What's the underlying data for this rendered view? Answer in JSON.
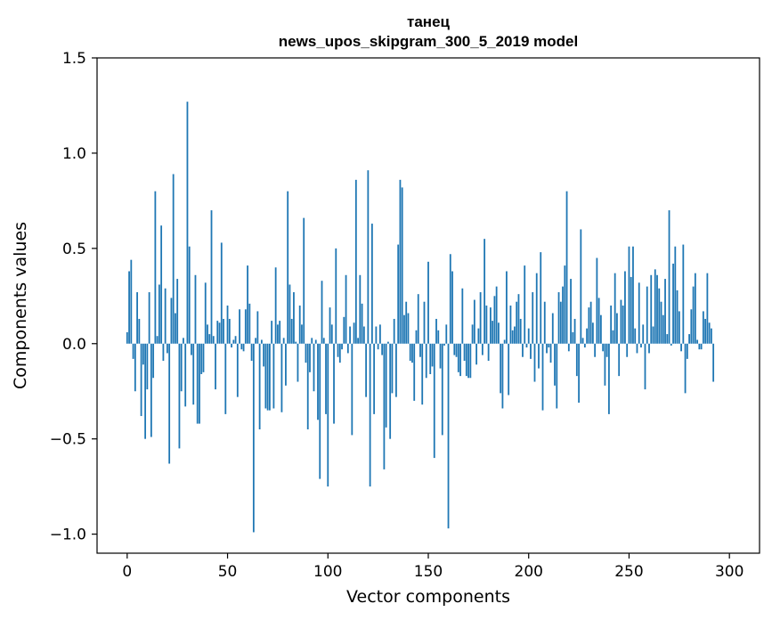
{
  "chart_data": {
    "type": "bar",
    "title": "танец",
    "subtitle": "news_upos_skipgram_300_5_2019 model",
    "xlabel": "Vector components",
    "ylabel": "Components values",
    "xlim": [
      -15,
      315
    ],
    "ylim": [
      -1.1,
      1.5
    ],
    "xticks": [
      0,
      50,
      100,
      150,
      200,
      250,
      300
    ],
    "yticks": [
      1.5,
      1.0,
      0.5,
      0.0,
      -0.5,
      -1.0
    ],
    "ytick_labels": [
      "1.5",
      "1.0",
      "0.5",
      "0.0",
      "−0.5",
      "−1.0"
    ],
    "bar_color": "#1f77b4",
    "grid": false,
    "x_start": 0,
    "values": [
      0.06,
      0.38,
      0.44,
      -0.08,
      -0.25,
      0.27,
      0.13,
      -0.38,
      -0.11,
      -0.5,
      -0.24,
      0.27,
      -0.49,
      -0.18,
      0.8,
      0.04,
      0.31,
      0.62,
      -0.09,
      0.29,
      -0.05,
      -0.63,
      0.24,
      0.89,
      0.16,
      0.34,
      -0.55,
      -0.25,
      0.03,
      -0.33,
      1.27,
      0.51,
      -0.06,
      -0.32,
      0.36,
      -0.42,
      -0.42,
      -0.16,
      -0.15,
      0.32,
      0.1,
      0.05,
      0.7,
      0.04,
      -0.24,
      0.12,
      0.11,
      0.53,
      0.13,
      -0.37,
      0.2,
      0.13,
      -0.02,
      0.02,
      0.04,
      -0.28,
      0.18,
      -0.03,
      -0.04,
      0.18,
      0.41,
      0.21,
      -0.09,
      -0.99,
      0.03,
      0.17,
      -0.45,
      0.02,
      -0.12,
      -0.34,
      -0.35,
      -0.35,
      0.12,
      -0.34,
      0.4,
      0.1,
      0.12,
      -0.36,
      0.03,
      -0.22,
      0.8,
      0.31,
      0.13,
      0.27,
      0.01,
      -0.2,
      0.2,
      0.1,
      0.66,
      -0.1,
      -0.45,
      -0.15,
      0.03,
      -0.25,
      0.02,
      -0.4,
      -0.71,
      0.33,
      0.03,
      -0.37,
      -0.75,
      0.19,
      0.1,
      -0.42,
      0.5,
      -0.07,
      -0.1,
      -0.03,
      0.14,
      0.36,
      -0.05,
      0.09,
      -0.48,
      0.11,
      0.86,
      0.03,
      0.36,
      0.21,
      0.09,
      -0.28,
      0.91,
      -0.75,
      0.63,
      -0.37,
      0.09,
      -0.03,
      0.1,
      -0.06,
      -0.66,
      -0.44,
      0.01,
      -0.5,
      -0.26,
      0.13,
      -0.28,
      0.52,
      0.86,
      0.82,
      0.15,
      0.22,
      0.16,
      -0.09,
      -0.1,
      -0.3,
      0.07,
      0.26,
      -0.07,
      -0.32,
      0.22,
      -0.18,
      0.43,
      -0.16,
      -0.12,
      -0.6,
      0.13,
      0.07,
      -0.13,
      -0.48,
      -0.01,
      0.1,
      -0.97,
      0.47,
      0.38,
      -0.06,
      -0.07,
      -0.15,
      -0.17,
      0.29,
      -0.09,
      -0.17,
      -0.18,
      -0.18,
      0.1,
      0.23,
      -0.11,
      0.08,
      0.27,
      -0.06,
      0.55,
      0.2,
      -0.09,
      0.19,
      0.12,
      0.25,
      0.3,
      0.11,
      -0.26,
      -0.34,
      0.02,
      0.38,
      -0.27,
      0.2,
      0.07,
      0.09,
      0.22,
      0.26,
      0.13,
      -0.07,
      0.41,
      -0.02,
      0.08,
      -0.08,
      0.27,
      -0.2,
      0.37,
      -0.13,
      0.48,
      -0.35,
      0.22,
      -0.05,
      -0.02,
      -0.1,
      0.16,
      -0.22,
      -0.34,
      0.27,
      0.22,
      0.3,
      0.41,
      0.8,
      -0.04,
      0.34,
      0.06,
      0.13,
      -0.17,
      -0.31,
      0.6,
      0.03,
      -0.02,
      0.08,
      0.19,
      0.22,
      0.11,
      -0.07,
      0.45,
      0.24,
      0.15,
      -0.04,
      -0.22,
      -0.07,
      -0.37,
      0.2,
      0.07,
      0.37,
      0.16,
      -0.17,
      0.23,
      0.2,
      0.38,
      -0.07,
      0.51,
      0.35,
      0.51,
      0.08,
      -0.05,
      0.32,
      -0.02,
      0.1,
      -0.24,
      0.3,
      -0.05,
      0.36,
      0.09,
      0.39,
      0.36,
      0.29,
      0.22,
      0.15,
      0.34,
      0.05,
      0.7,
      -0.01,
      0.42,
      0.51,
      0.28,
      0.17,
      -0.04,
      0.52,
      -0.26,
      -0.08,
      0.05,
      0.18,
      0.3,
      0.37,
      0.02,
      -0.03,
      -0.03,
      0.17,
      0.13,
      0.37,
      0.11,
      0.08,
      -0.2
    ]
  }
}
